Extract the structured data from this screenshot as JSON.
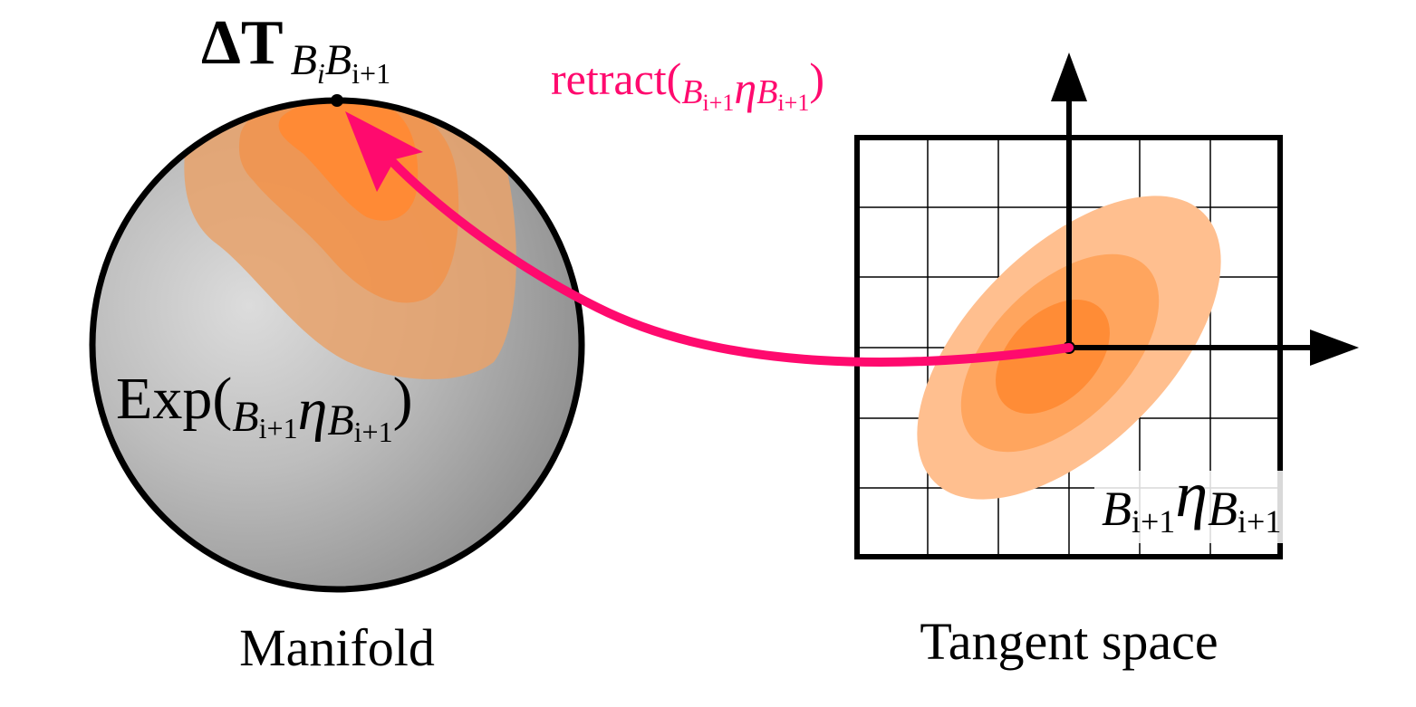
{
  "labels": {
    "delta_t_main": "ΔT",
    "delta_t_sub1": "B",
    "delta_t_sub1_idx": "i",
    "delta_t_sub2": "B",
    "delta_t_sub2_idx": "i+1",
    "retract_func": "retract(",
    "retract_close": ")",
    "exp_func": "Exp(",
    "exp_close": ")",
    "pre_B": "B",
    "pre_idx": "i+1",
    "eta": "η",
    "post_B": "B",
    "post_idx": "i+1",
    "manifold_caption": "Manifold",
    "tangent_caption": "Tangent space"
  },
  "colors": {
    "retract_arrow": "#ff0a6e",
    "density_light": "#ffbf8f",
    "density_mid": "#ffa55e",
    "density_dark": "#ff8c36",
    "axes": "#000000"
  },
  "icons": {
    "manifold": "sphere-icon",
    "tangent_grid": "grid-icon"
  }
}
